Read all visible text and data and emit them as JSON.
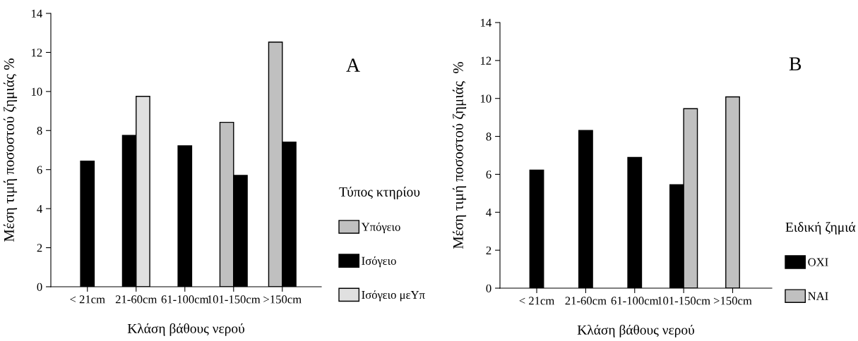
{
  "chart_data": [
    {
      "type": "bar",
      "categories": [
        "< 21cm",
        "21-60cm",
        "61-100cm",
        "101-150cm",
        ">150cm"
      ],
      "xlabel": "Κλάση βάθους νερού",
      "ylabel": "Μέση τιμή ποσοστού ζημιάς %",
      "ylim": [
        0,
        14
      ],
      "yticks": [
        0,
        2,
        4,
        6,
        8,
        10,
        12,
        14
      ],
      "legend": "right",
      "legend_title": "Τύπος κτηρίου",
      "annotations": [
        "A"
      ],
      "series": [
        {
          "name": "Υπόγειο",
          "color": "#c0c0c0",
          "values": [
            null,
            null,
            null,
            8.42,
            12.53
          ]
        },
        {
          "name": "Ισόγειο",
          "color": "#000000",
          "values": [
            6.43,
            7.75,
            7.22,
            5.7,
            7.41
          ]
        },
        {
          "name": "Ισόγειο μεΥπ",
          "color": "#e0e0e0",
          "values": [
            null,
            9.75,
            null,
            null,
            null
          ]
        }
      ]
    },
    {
      "type": "bar",
      "categories": [
        "< 21cm",
        "21-60cm",
        "61-100cm",
        "101-150cm",
        ">150cm"
      ],
      "xlabel": "Κλάση βάθους νερού",
      "ylabel": "Μέση τιμή ποσοστού ζημιάς  %",
      "ylim": [
        0,
        14
      ],
      "yticks": [
        0,
        2,
        4,
        6,
        8,
        10,
        12,
        14
      ],
      "legend": "right",
      "legend_title": "Ειδική ζημιά",
      "annotations": [
        "B"
      ],
      "series": [
        {
          "name": "ΟΧΙ",
          "color": "#000000",
          "values": [
            6.22,
            8.31,
            6.89,
            5.45,
            null
          ]
        },
        {
          "name": "ΝΑΙ",
          "color": "#c0c0c0",
          "values": [
            null,
            null,
            null,
            9.46,
            10.08
          ]
        }
      ]
    }
  ]
}
